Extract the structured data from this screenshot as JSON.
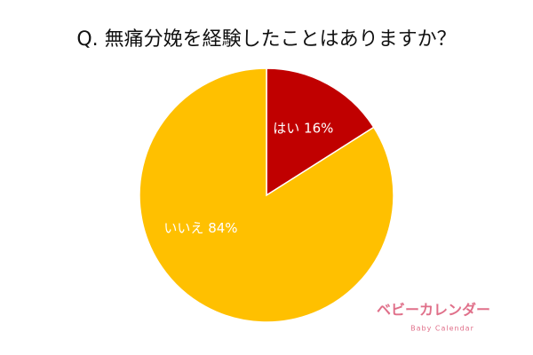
{
  "chart_data": {
    "type": "pie",
    "title": "Q. 無痛分娩を経験したことはありますか？",
    "values": [
      16,
      84
    ],
    "value_labels": [
      "はい 16%",
      "いいえ 84%"
    ],
    "colors": [
      "#c00000",
      "#ffc000"
    ]
  },
  "logo": {
    "text": "ベビーカレンダー",
    "subtext": "Baby Calendar"
  }
}
